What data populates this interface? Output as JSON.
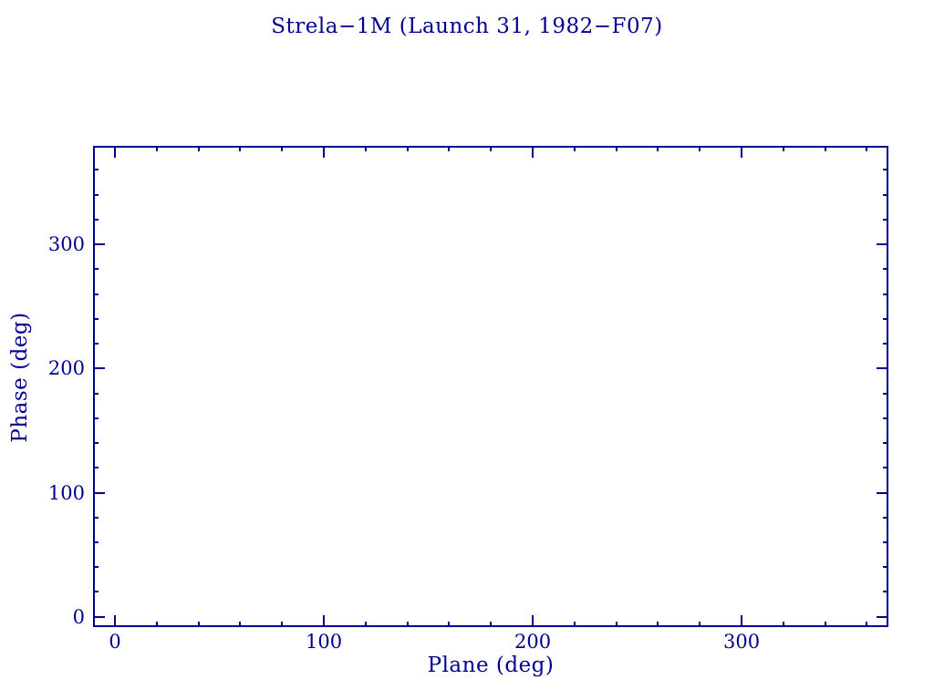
{
  "colors": {
    "foreground": "#000090",
    "background": "#ffffff"
  },
  "chart_data": {
    "type": "scatter",
    "title": "Strela−1M (Launch 31, 1982−F07)",
    "xlabel": "Plane (deg)",
    "ylabel": "Phase (deg)",
    "xlim": [
      -10.5,
      370.3
    ],
    "ylim": [
      -8.3,
      379.4
    ],
    "x_major_ticks": [
      0,
      100,
      200,
      300
    ],
    "y_major_ticks": [
      0,
      100,
      200,
      300
    ],
    "x_tick_labels": [
      "0",
      "100",
      "200",
      "300"
    ],
    "y_tick_labels": [
      "0",
      "100",
      "200",
      "300"
    ],
    "minor_tick_step": 20,
    "tick_direction": "in",
    "grid": false,
    "legend": null,
    "series": [],
    "points": []
  }
}
